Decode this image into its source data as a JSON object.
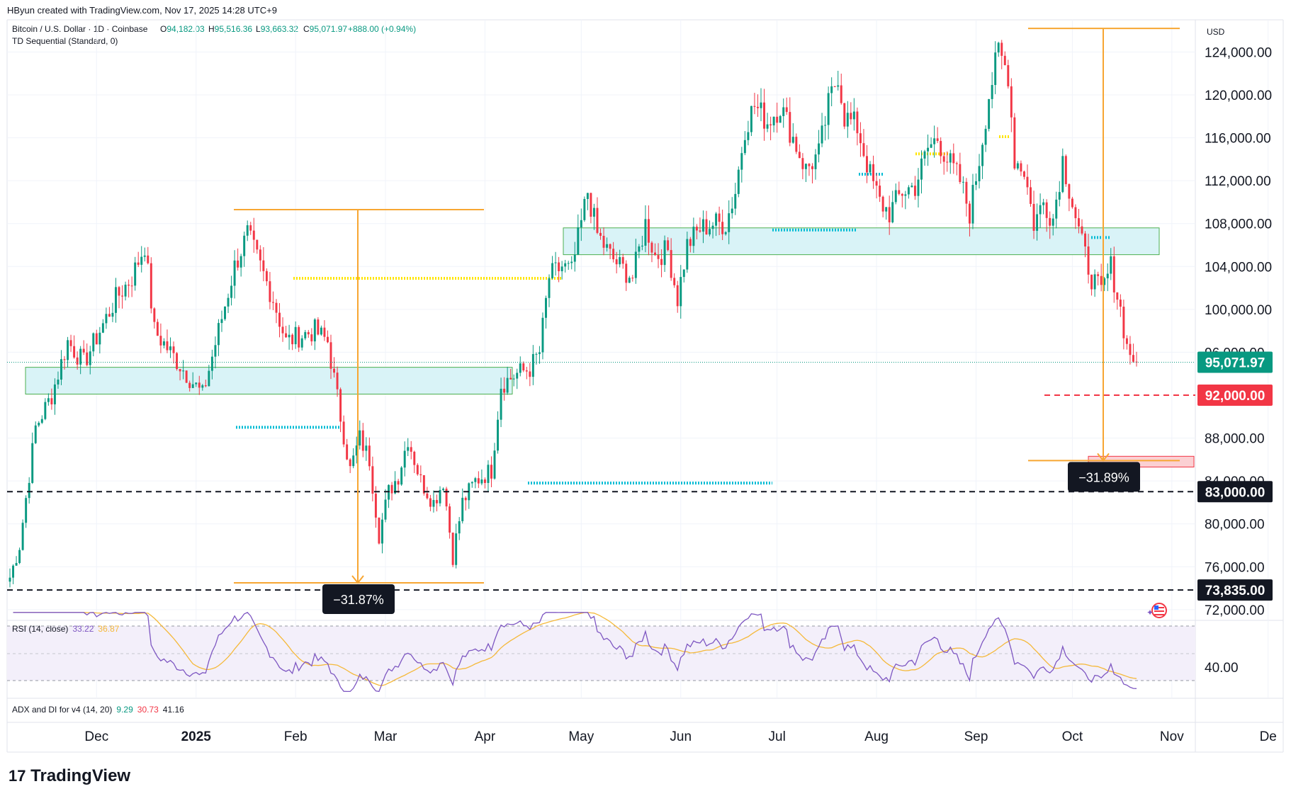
{
  "header": {
    "created_by": "HByun created with TradingView.com, Nov 17, 2025 14:28 UTC+9",
    "symbol": "Bitcoin / U.S. Dollar · 1D · Coinbase",
    "ohlc": {
      "o_label": "O",
      "o": "94,182.03",
      "h_label": "H",
      "h": "95,516.36",
      "l_label": "L",
      "l": "93,663.32",
      "c_label": "C",
      "c": "95,071.97",
      "chg": "+888.00 (+0.94%)"
    },
    "indicator": "TD Sequential (Standard, 0)"
  },
  "currency": "USD",
  "colors": {
    "up": "#089981",
    "down": "#f23645",
    "ma": "#f5b93a",
    "rsi": "#7e57c2",
    "orange": "#f7a632",
    "cyan": "#00bcd4",
    "yellow": "#ffe500",
    "zone_fill": "#d9f3f7",
    "zone_border": "#4caf50",
    "red_zone_fill": "#fbd0d3"
  },
  "chart_data": {
    "type": "candlestick",
    "y_axis": {
      "ticks": [
        "124,000.00",
        "120,000.00",
        "116,000.00",
        "112,000.00",
        "108,000.00",
        "104,000.00",
        "100,000.00",
        "96,000.00",
        "88,000.00",
        "84,000.00",
        "80,000.00",
        "76,000.00",
        "72,000.00"
      ],
      "tick_values": [
        124000,
        120000,
        116000,
        112000,
        108000,
        104000,
        100000,
        96000,
        88000,
        84000,
        80000,
        76000,
        72000
      ],
      "range": [
        71000,
        127000
      ]
    },
    "x_axis": {
      "labels": [
        "Dec",
        "2025",
        "Feb",
        "Mar",
        "Apr",
        "May",
        "Jun",
        "Jul",
        "Aug",
        "Sep",
        "Oct",
        "Nov",
        "De"
      ]
    },
    "price_labels": {
      "current": "95,071.97",
      "target": "92,000.00",
      "support1": "83,000.00",
      "support2": "73,835.00"
    },
    "levels": {
      "current": 95071.97,
      "target": 92000,
      "support1": 83000,
      "support2": 73835
    },
    "measures": [
      {
        "label": "−31.87%",
        "from": 109300,
        "to": 74500
      },
      {
        "label": "−31.89%",
        "from": 126200,
        "to": 85900
      }
    ],
    "zones": [
      {
        "top": 94600,
        "bottom": 92100
      },
      {
        "top": 107600,
        "bottom": 105100
      },
      {
        "top": 86300,
        "bottom": 85300
      }
    ],
    "pivot_lines": [
      {
        "color": "yellow",
        "value": 102900
      },
      {
        "color": "cyan",
        "value": 89000
      },
      {
        "color": "cyan",
        "value": 83800
      },
      {
        "color": "cyan",
        "value": 107400
      },
      {
        "color": "cyan",
        "value": 112600
      },
      {
        "color": "yellow",
        "value": 114500
      },
      {
        "color": "yellow",
        "value": 116100
      },
      {
        "color": "cyan",
        "value": 106700
      }
    ],
    "anchors": [
      {
        "d": 0,
        "p": 75000
      },
      {
        "d": 3,
        "p": 78000
      },
      {
        "d": 8,
        "p": 89000
      },
      {
        "d": 13,
        "p": 92000
      },
      {
        "d": 18,
        "p": 97000
      },
      {
        "d": 23,
        "p": 95000
      },
      {
        "d": 28,
        "p": 98000
      },
      {
        "d": 33,
        "p": 101000
      },
      {
        "d": 38,
        "p": 103000
      },
      {
        "d": 42,
        "p": 106000
      },
      {
        "d": 45,
        "p": 98000
      },
      {
        "d": 50,
        "p": 96000
      },
      {
        "d": 55,
        "p": 94000
      },
      {
        "d": 60,
        "p": 92000
      },
      {
        "d": 65,
        "p": 98000
      },
      {
        "d": 70,
        "p": 104000
      },
      {
        "d": 74,
        "p": 107000
      },
      {
        "d": 78,
        "p": 104000
      },
      {
        "d": 82,
        "p": 101000
      },
      {
        "d": 86,
        "p": 97000
      },
      {
        "d": 90,
        "p": 97500
      },
      {
        "d": 95,
        "p": 98000
      },
      {
        "d": 99,
        "p": 97000
      },
      {
        "d": 103,
        "p": 90000
      },
      {
        "d": 106,
        "p": 85000
      },
      {
        "d": 109,
        "p": 88000
      },
      {
        "d": 112,
        "p": 86000
      },
      {
        "d": 115,
        "p": 79000
      },
      {
        "d": 118,
        "p": 83000
      },
      {
        "d": 121,
        "p": 84500
      },
      {
        "d": 124,
        "p": 88000
      },
      {
        "d": 128,
        "p": 84000
      },
      {
        "d": 132,
        "p": 82000
      },
      {
        "d": 135,
        "p": 84000
      },
      {
        "d": 138,
        "p": 77000
      },
      {
        "d": 141,
        "p": 82000
      },
      {
        "d": 145,
        "p": 84000
      },
      {
        "d": 150,
        "p": 85000
      },
      {
        "d": 153,
        "p": 93000
      },
      {
        "d": 158,
        "p": 94000
      },
      {
        "d": 162,
        "p": 94500
      },
      {
        "d": 165,
        "p": 96000
      },
      {
        "d": 168,
        "p": 103000
      },
      {
        "d": 172,
        "p": 104000
      },
      {
        "d": 175,
        "p": 103500
      },
      {
        "d": 178,
        "p": 108000
      },
      {
        "d": 180,
        "p": 111000
      },
      {
        "d": 183,
        "p": 107000
      },
      {
        "d": 187,
        "p": 105000
      },
      {
        "d": 190,
        "p": 104000
      },
      {
        "d": 194,
        "p": 103000
      },
      {
        "d": 198,
        "p": 108000
      },
      {
        "d": 201,
        "p": 105000
      },
      {
        "d": 205,
        "p": 105500
      },
      {
        "d": 208,
        "p": 101000
      },
      {
        "d": 211,
        "p": 106000
      },
      {
        "d": 215,
        "p": 107500
      },
      {
        "d": 219,
        "p": 108000
      },
      {
        "d": 223,
        "p": 108000
      },
      {
        "d": 226,
        "p": 111000
      },
      {
        "d": 229,
        "p": 117000
      },
      {
        "d": 232,
        "p": 119000
      },
      {
        "d": 236,
        "p": 117500
      },
      {
        "d": 240,
        "p": 119000
      },
      {
        "d": 244,
        "p": 116000
      },
      {
        "d": 248,
        "p": 113000
      },
      {
        "d": 252,
        "p": 114500
      },
      {
        "d": 255,
        "p": 119000
      },
      {
        "d": 258,
        "p": 122000
      },
      {
        "d": 260,
        "p": 118000
      },
      {
        "d": 264,
        "p": 117000
      },
      {
        "d": 268,
        "p": 112500
      },
      {
        "d": 271,
        "p": 110000
      },
      {
        "d": 274,
        "p": 109000
      },
      {
        "d": 278,
        "p": 111000
      },
      {
        "d": 282,
        "p": 111500
      },
      {
        "d": 286,
        "p": 115000
      },
      {
        "d": 289,
        "p": 116000
      },
      {
        "d": 292,
        "p": 114000
      },
      {
        "d": 296,
        "p": 112000
      },
      {
        "d": 299,
        "p": 109000
      },
      {
        "d": 302,
        "p": 114000
      },
      {
        "d": 305,
        "p": 120000
      },
      {
        "d": 308,
        "p": 124000
      },
      {
        "d": 311,
        "p": 122000
      },
      {
        "d": 313,
        "p": 114000
      },
      {
        "d": 316,
        "p": 113000
      },
      {
        "d": 319,
        "p": 108000
      },
      {
        "d": 322,
        "p": 110000
      },
      {
        "d": 325,
        "p": 108500
      },
      {
        "d": 328,
        "p": 114000
      },
      {
        "d": 331,
        "p": 110000
      },
      {
        "d": 334,
        "p": 106000
      },
      {
        "d": 337,
        "p": 103000
      },
      {
        "d": 340,
        "p": 101500
      },
      {
        "d": 343,
        "p": 104000
      },
      {
        "d": 346,
        "p": 100000
      },
      {
        "d": 348,
        "p": 96500
      },
      {
        "d": 351,
        "p": 95072
      }
    ],
    "rsi": {
      "label": "RSI (14, close)",
      "value": "33.22",
      "ma": "36.87"
    },
    "adx": {
      "label": "ADX and DI for v4 (14, 20)",
      "adx": "9.29",
      "di_plus": "30.73",
      "di_minus": "41.16"
    },
    "rsi_level": "40.00"
  }
}
